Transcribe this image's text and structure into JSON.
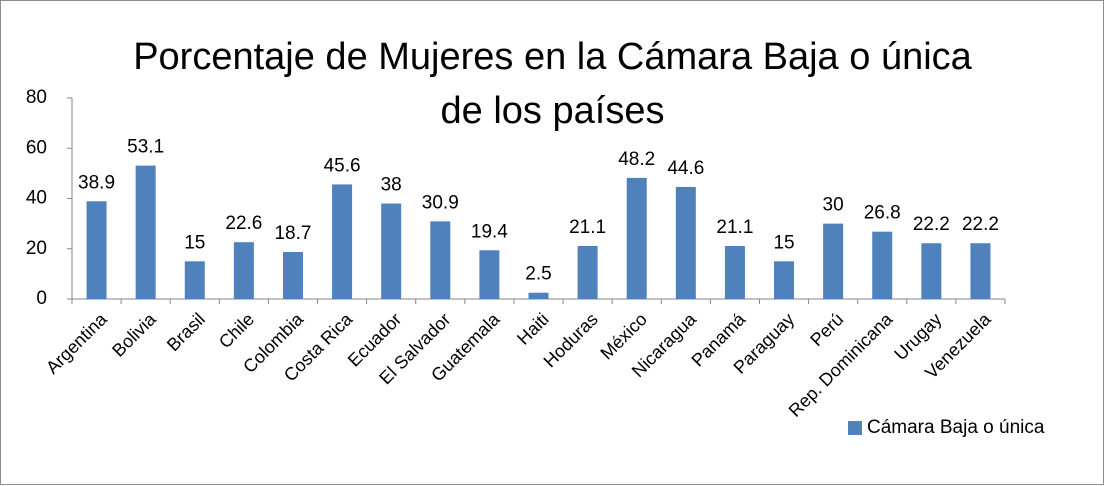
{
  "chart_data": {
    "type": "bar",
    "title": "Porcentaje de Mujeres en la Cámara Baja o única de los países",
    "categories": [
      "Argentina",
      "Bolivia",
      "Brasil",
      "Chile",
      "Colombia",
      "Costa Rica",
      "Ecuador",
      "El Salvador",
      "Guatemala",
      "Haiti",
      "Hoduras",
      "México",
      "Nicaragua",
      "Panamá",
      "Paraguay",
      "Perú",
      "Rep. Dominicana",
      "Urugay",
      "Venezuela"
    ],
    "series": [
      {
        "name": "Cámara Baja o única",
        "color": "#4f81bd",
        "values": [
          38.9,
          53.1,
          15,
          22.6,
          18.7,
          45.6,
          38,
          30.9,
          19.4,
          2.5,
          21.1,
          48.2,
          44.6,
          21.1,
          15,
          30,
          26.8,
          22.2,
          22.2
        ]
      }
    ],
    "ylim": [
      0,
      80
    ],
    "yticks": [
      0,
      20,
      40,
      60,
      80
    ],
    "grid": false,
    "legend": "bottom-right"
  }
}
